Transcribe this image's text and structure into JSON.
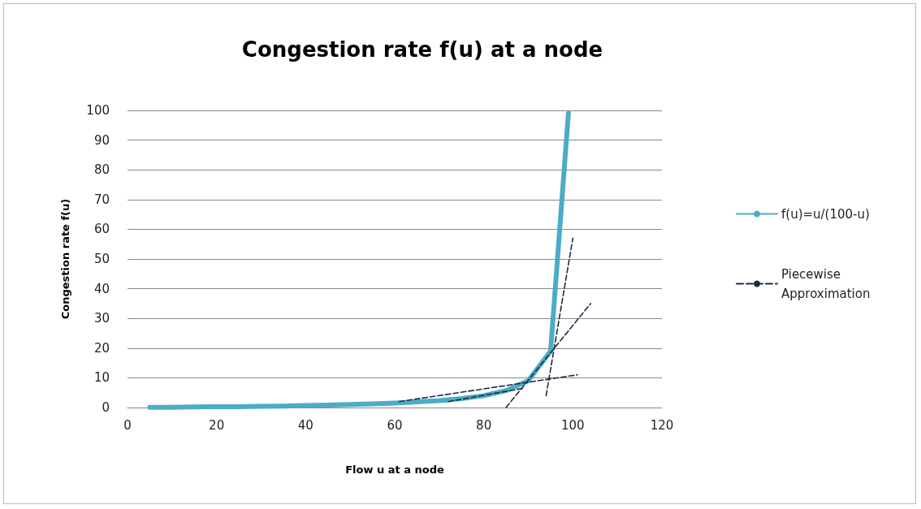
{
  "chart_data": {
    "type": "line",
    "title": "Congestion rate f(u) at a node",
    "xlabel": "Flow u at a node",
    "ylabel": "Congestion rate f(u)",
    "x": [
      5,
      10,
      15,
      20,
      25,
      30,
      35,
      40,
      45,
      50,
      55,
      60,
      65,
      70,
      75,
      80,
      85,
      90,
      95,
      99
    ],
    "series": [
      {
        "name": "f(u)=u/(100-u)",
        "color": "#4bacc6",
        "line_style": "solid",
        "values": [
          0.1,
          0.1,
          0.2,
          0.3,
          0.3,
          0.4,
          0.5,
          0.7,
          0.8,
          1,
          1.2,
          1.5,
          1.9,
          2.3,
          3,
          4,
          5.7,
          9,
          19,
          99
        ]
      },
      {
        "name": "Piecewise Approximation",
        "color": "#1f2a44",
        "line_style": "dashed",
        "x": [
          61,
          101
        ],
        "values": [
          2,
          11
        ]
      },
      {
        "color": "#1f2a44",
        "line_style": "dashed",
        "x": [
          72,
          89
        ],
        "values": [
          2,
          6.5
        ]
      },
      {
        "color": "#1f2a44",
        "line_style": "dashed",
        "x": [
          85,
          104
        ],
        "values": [
          0,
          35
        ]
      },
      {
        "color": "#1f2a44",
        "line_style": "dashed",
        "x": [
          94,
          100
        ],
        "values": [
          4,
          57
        ]
      }
    ],
    "xlim": [
      0,
      120
    ],
    "xticks": [
      0,
      20,
      40,
      60,
      80,
      100,
      120
    ],
    "ylim": [
      0,
      100
    ],
    "yticks": [
      0,
      10,
      20,
      30,
      40,
      50,
      60,
      70,
      80,
      90,
      100
    ],
    "grid": "y",
    "legend": "right",
    "marker": "none"
  }
}
